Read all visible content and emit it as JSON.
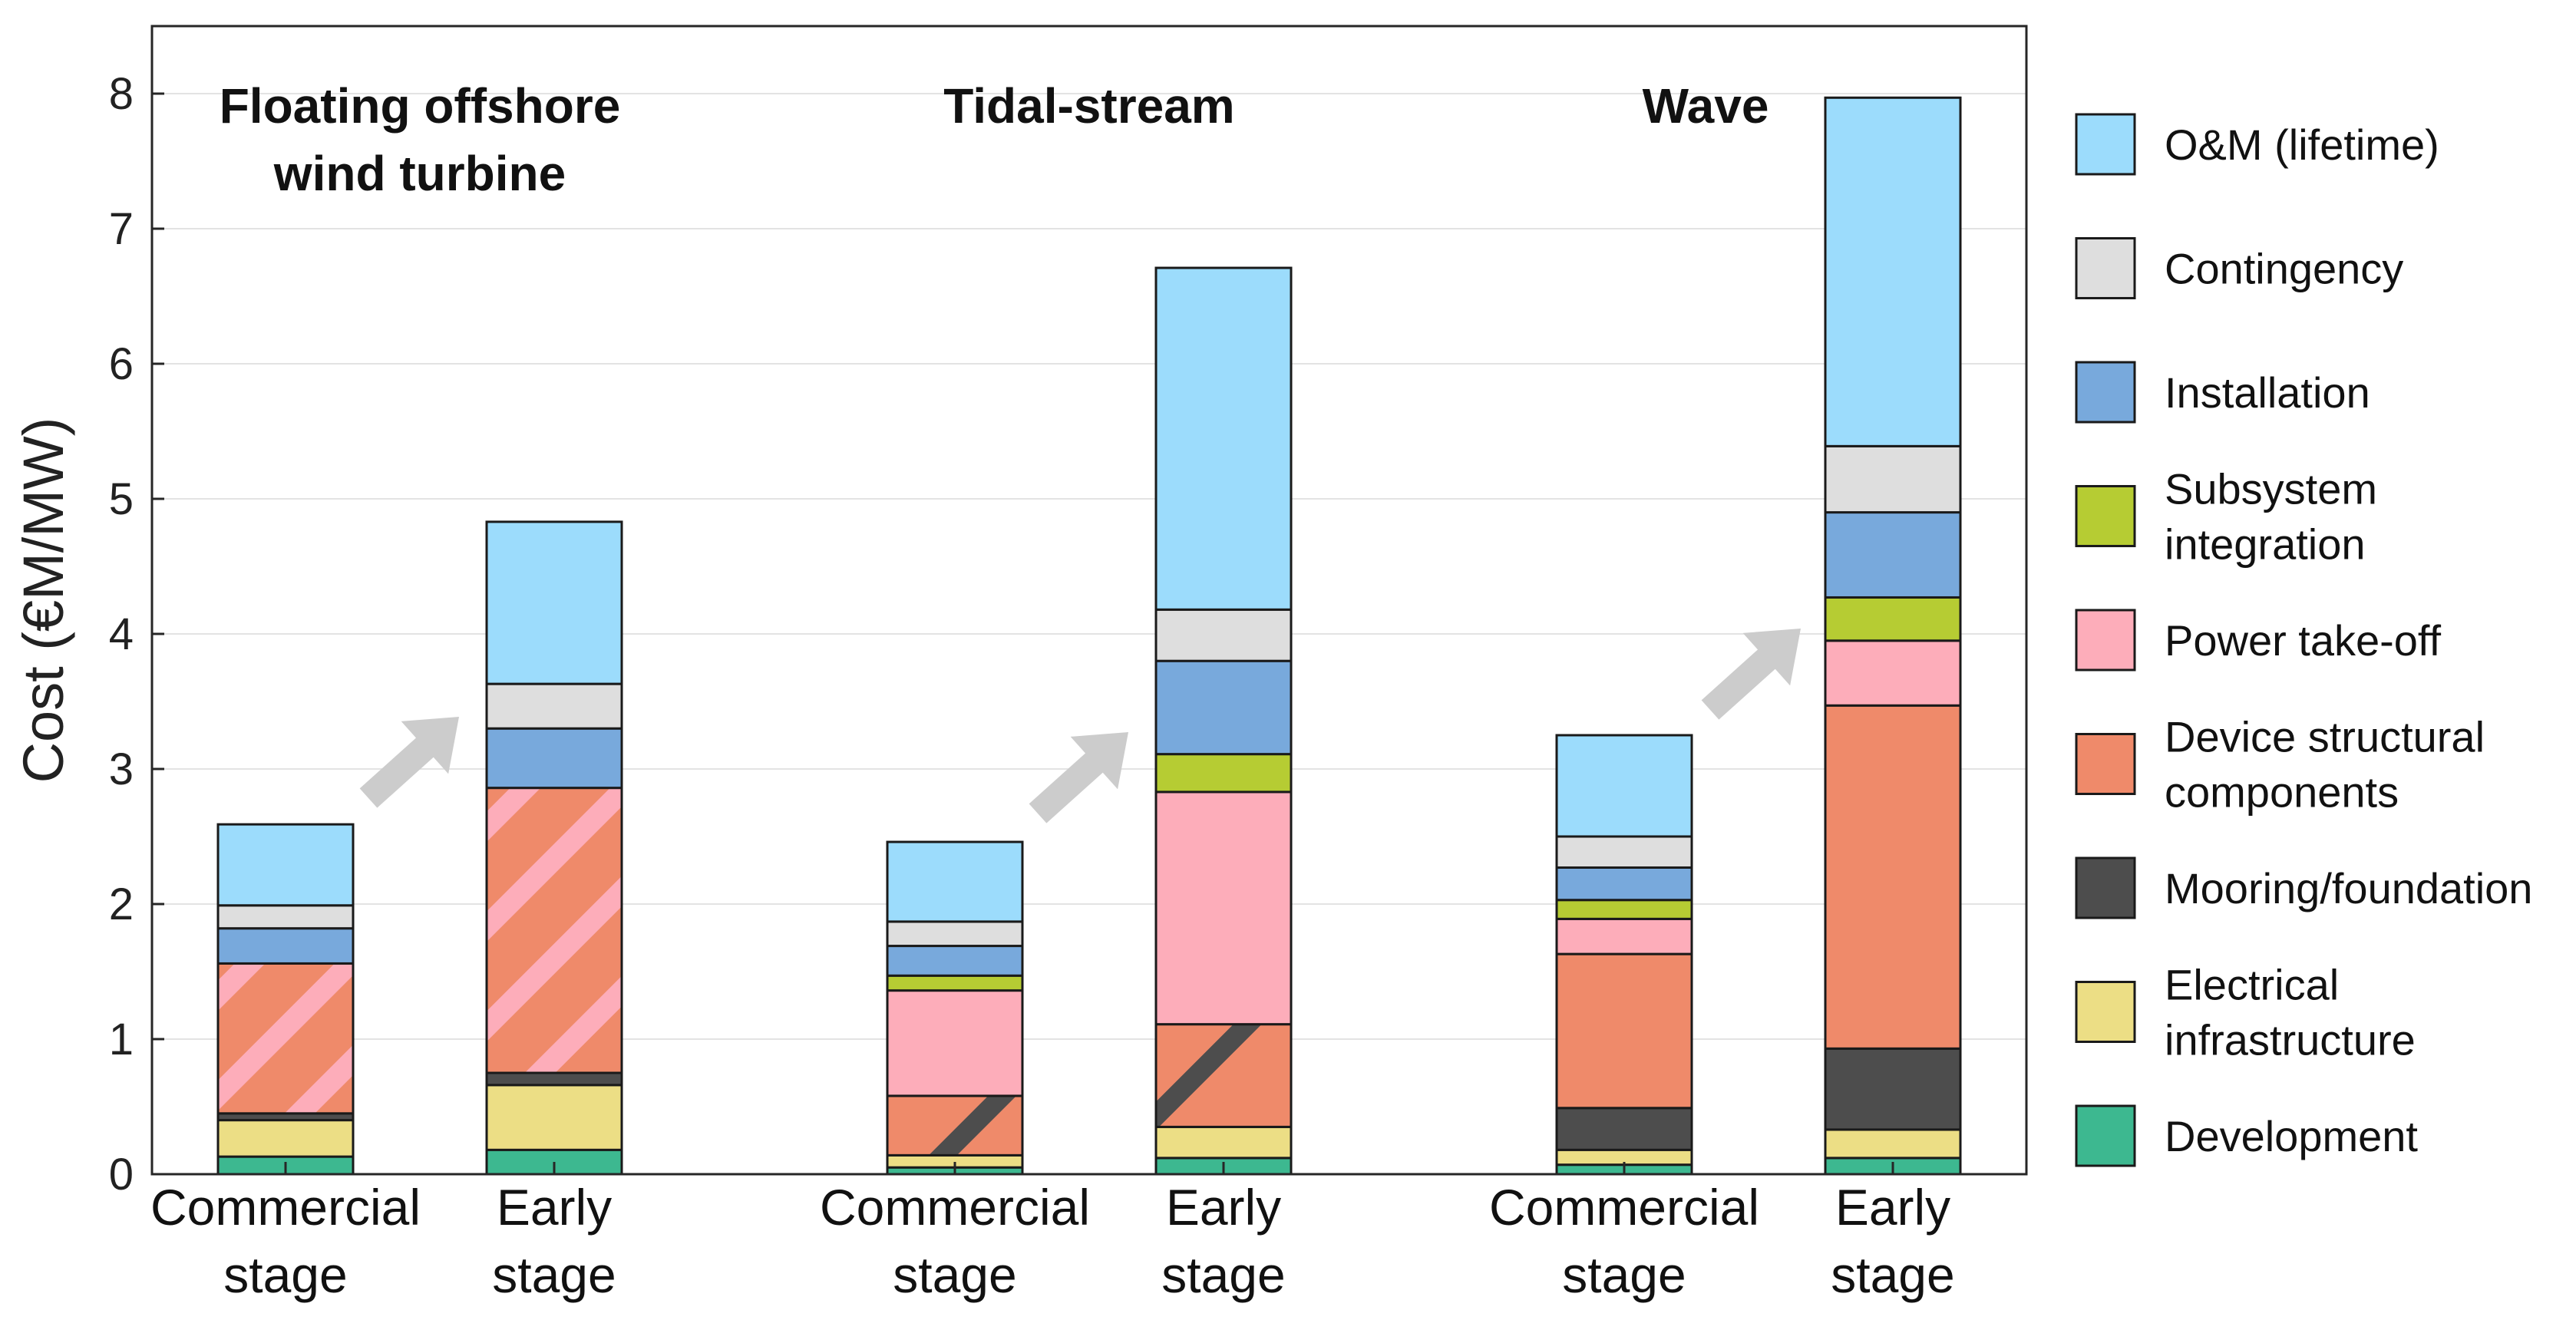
{
  "chart_data": {
    "type": "bar",
    "stacked": true,
    "ylabel": "Cost (€M/MW)",
    "xlabel": "",
    "ylim": [
      0,
      8.5
    ],
    "yticks": [
      0,
      1,
      2,
      3,
      4,
      5,
      6,
      7,
      8
    ],
    "grid": "horizontal",
    "legend_position": "right",
    "groups": [
      {
        "title": [
          "Floating offshore",
          "wind turbine"
        ],
        "hatch": "pink",
        "columns": [
          0,
          1
        ]
      },
      {
        "title": [
          "Tidal-stream"
        ],
        "hatch": "dark",
        "columns": [
          2,
          3
        ]
      },
      {
        "title": [
          "Wave"
        ],
        "hatch": null,
        "columns": [
          4,
          5
        ]
      }
    ],
    "columns": [
      {
        "label": [
          "Commercial",
          "stage"
        ],
        "group": 0
      },
      {
        "label": [
          "Early",
          "stage"
        ],
        "group": 0
      },
      {
        "label": [
          "Commercial",
          "stage"
        ],
        "group": 1
      },
      {
        "label": [
          "Early",
          "stage"
        ],
        "group": 1
      },
      {
        "label": [
          "Commercial",
          "stage"
        ],
        "group": 2
      },
      {
        "label": [
          "Early",
          "stage"
        ],
        "group": 2
      }
    ],
    "series": [
      {
        "name": "Development",
        "color": "#3db890",
        "values": [
          0.13,
          0.18,
          0.05,
          0.12,
          0.07,
          0.12
        ]
      },
      {
        "name": "Electrical infrastructure",
        "color": "#ecde85",
        "values": [
          0.27,
          0.48,
          0.09,
          0.23,
          0.11,
          0.21
        ]
      },
      {
        "name": "Mooring/foundation",
        "color": "#4d4d4d",
        "values": [
          0.05,
          0.09,
          0.0,
          0.0,
          0.31,
          0.6
        ]
      },
      {
        "name": "Device structural components",
        "color": "#ef8a6a",
        "values": [
          1.11,
          2.11,
          0.44,
          0.76,
          1.14,
          2.54
        ]
      },
      {
        "name": "Power take-off",
        "color": "#fdadba",
        "values": [
          0.0,
          0.0,
          0.78,
          1.72,
          0.26,
          0.48
        ]
      },
      {
        "name": "Subsystem integration",
        "color": "#b6cc33",
        "values": [
          0.0,
          0.0,
          0.11,
          0.28,
          0.14,
          0.32
        ]
      },
      {
        "name": "Installation",
        "color": "#78a9dc",
        "values": [
          0.26,
          0.44,
          0.22,
          0.69,
          0.24,
          0.63
        ]
      },
      {
        "name": "Contingency",
        "color": "#dedede",
        "values": [
          0.17,
          0.33,
          0.18,
          0.38,
          0.23,
          0.49
        ]
      },
      {
        "name": "O&M (lifetime)",
        "color": "#9cdcfc",
        "values": [
          0.6,
          1.2,
          0.59,
          2.53,
          0.75,
          2.58
        ]
      }
    ],
    "legend_entries": [
      {
        "lines": [
          "O&M (lifetime)"
        ],
        "color": "#9cdcfc"
      },
      {
        "lines": [
          "Contingency"
        ],
        "color": "#dedede"
      },
      {
        "lines": [
          "Installation"
        ],
        "color": "#78a9dc"
      },
      {
        "lines": [
          "Subsystem",
          "integration"
        ],
        "color": "#b6cc33"
      },
      {
        "lines": [
          "Power take-off"
        ],
        "color": "#fdadba"
      },
      {
        "lines": [
          "Device structural",
          "components"
        ],
        "color": "#ef8a6a"
      },
      {
        "lines": [
          "Mooring/foundation"
        ],
        "color": "#4d4d4d"
      },
      {
        "lines": [
          "Electrical",
          "infrastructure"
        ],
        "color": "#ecde85"
      },
      {
        "lines": [
          "Development"
        ],
        "color": "#3db890"
      }
    ],
    "arrow_color": "#cccccc"
  }
}
